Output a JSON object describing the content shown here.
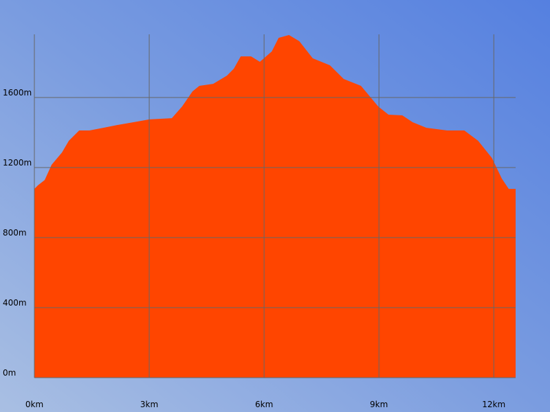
{
  "chart_data": {
    "type": "area",
    "x": [
      0,
      0.09,
      0.27,
      0.45,
      0.72,
      0.9,
      1.17,
      1.44,
      1.8,
      2.16,
      2.69,
      3.0,
      3.59,
      3.86,
      4.13,
      4.31,
      4.67,
      5.03,
      5.21,
      5.39,
      5.66,
      5.89,
      6.2,
      6.38,
      6.65,
      6.92,
      7.27,
      7.72,
      8.08,
      8.53,
      8.98,
      9.25,
      9.61,
      9.88,
      10.24,
      10.78,
      11.23,
      11.59,
      11.95,
      12.21,
      12.39,
      12.57
    ],
    "values": [
      1078,
      1098,
      1129,
      1216,
      1286,
      1353,
      1412,
      1412,
      1427,
      1443,
      1463,
      1475,
      1482,
      1549,
      1635,
      1667,
      1678,
      1725,
      1765,
      1835,
      1835,
      1804,
      1863,
      1941,
      1957,
      1922,
      1824,
      1784,
      1706,
      1667,
      1549,
      1502,
      1498,
      1459,
      1427,
      1412,
      1412,
      1353,
      1255,
      1137,
      1078,
      1078
    ],
    "color": "#ff4500",
    "xlim": [
      0,
      12.57
    ],
    "ylim": [
      0,
      1961
    ],
    "xticks": [
      {
        "value": 0,
        "label": "0km"
      },
      {
        "value": 3,
        "label": "3km"
      },
      {
        "value": 6,
        "label": "6km"
      },
      {
        "value": 9,
        "label": "9km"
      },
      {
        "value": 12,
        "label": "12km"
      }
    ],
    "yticks": [
      {
        "value": 0,
        "label": "0m"
      },
      {
        "value": 400,
        "label": "400m"
      },
      {
        "value": 800,
        "label": "800m"
      },
      {
        "value": 1200,
        "label": "1200m"
      },
      {
        "value": 1600,
        "label": "1600m"
      }
    ],
    "grid": true
  }
}
